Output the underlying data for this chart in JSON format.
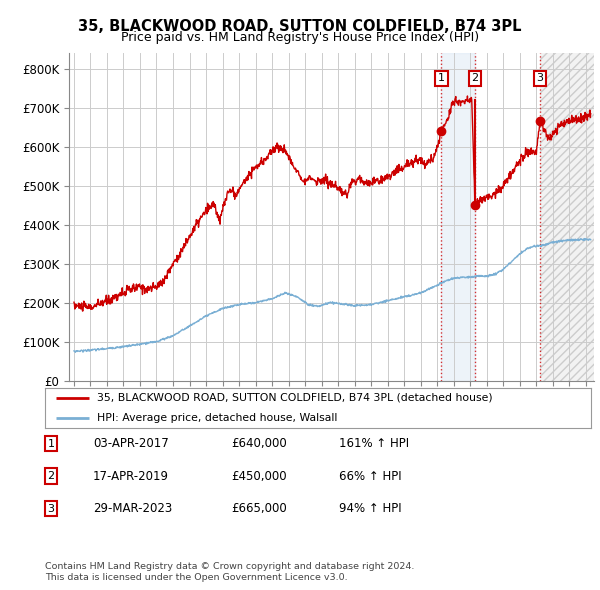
{
  "title1": "35, BLACKWOOD ROAD, SUTTON COLDFIELD, B74 3PL",
  "title2": "Price paid vs. HM Land Registry's House Price Index (HPI)",
  "ylabel_ticks": [
    "£0",
    "£100K",
    "£200K",
    "£300K",
    "£400K",
    "£500K",
    "£600K",
    "£700K",
    "£800K"
  ],
  "ytick_vals": [
    0,
    100000,
    200000,
    300000,
    400000,
    500000,
    600000,
    700000,
    800000
  ],
  "ylim": [
    0,
    840000
  ],
  "xlim_start": 1994.7,
  "xlim_end": 2026.5,
  "sale_dates": [
    2017.25,
    2019.29,
    2023.23
  ],
  "sale_prices": [
    640000,
    450000,
    665000
  ],
  "sale_labels": [
    "1",
    "2",
    "3"
  ],
  "sale_info": [
    {
      "num": "1",
      "date": "03-APR-2017",
      "price": "£640,000",
      "pct": "161% ↑ HPI"
    },
    {
      "num": "2",
      "date": "17-APR-2019",
      "price": "£450,000",
      "pct": "66% ↑ HPI"
    },
    {
      "num": "3",
      "date": "29-MAR-2023",
      "price": "£665,000",
      "pct": "94% ↑ HPI"
    }
  ],
  "legend_line1": "35, BLACKWOOD ROAD, SUTTON COLDFIELD, B74 3PL (detached house)",
  "legend_line2": "HPI: Average price, detached house, Walsall",
  "footer1": "Contains HM Land Registry data © Crown copyright and database right 2024.",
  "footer2": "This data is licensed under the Open Government Licence v3.0.",
  "red_color": "#cc0000",
  "blue_color": "#7aafd4",
  "bg_color": "#ffffff",
  "grid_color": "#cccccc",
  "shade_blue": "#dce8f5",
  "shade_gray": "#e8e8e8"
}
